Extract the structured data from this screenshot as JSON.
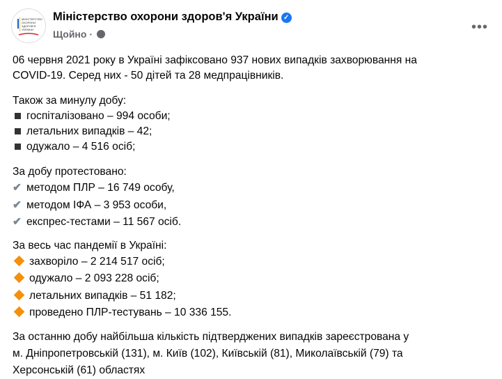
{
  "post": {
    "author": "Міністерство охорони здоров'я України",
    "verified_icon": "verified-badge-icon",
    "time": "Щойно",
    "separator": "·",
    "privacy_icon": "globe-icon",
    "more_label": "•••",
    "logo_text": "МІНІСТЕРСТВО ОХОРОНИ ЗДОРОВ'Я УКРАЇНИ",
    "intro": [
      "06 червня 2021 року в Україні зафіксовано 937 нових випадків захворювання на",
      "COVID-19. Серед них - 50 дітей та 28 медпрацівників."
    ],
    "day_heading": "Також за минулу добу:",
    "day_items": [
      "госпіталізовано – 994 особи;",
      "летальних випадків – 42;",
      "одужало – 4 516 осіб;"
    ],
    "tests_heading": "За добу протестовано:",
    "tests_items": [
      "методом ПЛР – 16 749 особу,",
      "методом ІФА – 3 953 особи,",
      "експрес-тестами – 11 567 осіб."
    ],
    "total_heading": "За весь час пандемії в Україні:",
    "total_items": [
      "захворіло – 2 214 517 осіб;",
      "одужало – 2 093 228 осіб;",
      "летальних випадків – 51 182;",
      "проведено ПЛР-тестувань – 10 336 155."
    ],
    "regions": [
      "За останню добу найбільша кількість підтверджених випадків зареєстрована у",
      "м. Дніпропетровській (131), м. Київ (102), Київській (81), Миколаївській (79) та",
      "Херсонській (61) областях"
    ]
  }
}
